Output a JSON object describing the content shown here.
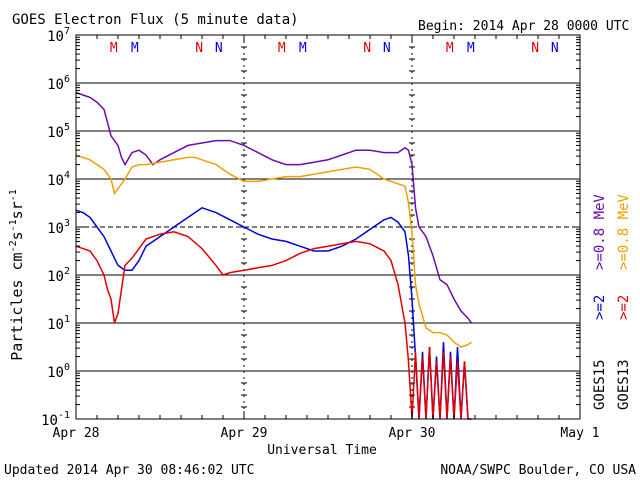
{
  "header": {
    "title": "GOES Electron Flux (5 minute data)",
    "begin": "Begin: 2014 Apr 28 0000 UTC"
  },
  "footer": {
    "updated": "Updated 2014 Apr 30 08:46:02 UTC",
    "source": "NOAA/SWPC Boulder, CO USA"
  },
  "chart_data": {
    "type": "line",
    "xlabel": "Universal Time",
    "ylabel_base": "Particles cm",
    "ylabel_exp1": "-2",
    "ylabel_mid1": "s",
    "ylabel_exp2": "-1",
    "ylabel_mid2": "sr",
    "ylabel_exp3": "-1",
    "y_scale": "log",
    "ylim_exp": [
      -1,
      7
    ],
    "xlim_hours": [
      0,
      72
    ],
    "x_ticks": [
      {
        "hour": 0,
        "label": "Apr 28"
      },
      {
        "hour": 24,
        "label": "Apr 29"
      },
      {
        "hour": 48,
        "label": "Apr 30"
      },
      {
        "hour": 72,
        "label": "May 1"
      }
    ],
    "y_tick_exponents": [
      -1,
      0,
      1,
      2,
      3,
      4,
      5,
      6,
      7
    ],
    "y_tick_base": "10",
    "threshold_exp": 3,
    "local_time_markers": [
      {
        "hour": 5.4,
        "label": "M",
        "color": "#e00000"
      },
      {
        "hour": 8.4,
        "label": "M",
        "color": "#0000dd"
      },
      {
        "hour": 17.6,
        "label": "N",
        "color": "#e00000"
      },
      {
        "hour": 20.4,
        "label": "N",
        "color": "#0000dd"
      },
      {
        "hour": 29.4,
        "label": "M",
        "color": "#e00000"
      },
      {
        "hour": 32.4,
        "label": "M",
        "color": "#0000dd"
      },
      {
        "hour": 41.6,
        "label": "N",
        "color": "#e00000"
      },
      {
        "hour": 44.4,
        "label": "N",
        "color": "#0000dd"
      },
      {
        "hour": 53.4,
        "label": "M",
        "color": "#e00000"
      },
      {
        "hour": 56.4,
        "label": "M",
        "color": "#0000dd"
      },
      {
        "hour": 65.6,
        "label": "N",
        "color": "#e00000"
      },
      {
        "hour": 68.4,
        "label": "N",
        "color": "#0000dd"
      }
    ],
    "legend": {
      "goes15": {
        "label": "GOES15",
        "lines": [
          {
            "text": ">=2",
            "color": "#0000dd"
          },
          {
            "text": ">=0.8 MeV",
            "color": "#6a0dad"
          }
        ]
      },
      "goes13": {
        "label": "GOES13",
        "lines": [
          {
            "text": ">=2",
            "color": "#e00000"
          },
          {
            "text": ">=0.8 MeV",
            "color": "#f0a000"
          }
        ]
      },
      "g15_hi_text": ">=2",
      "g15_lo_text": ">=0.8 MeV",
      "g13_hi_text": ">=2",
      "g13_lo_text": ">=0.8 MeV"
    },
    "series": [
      {
        "satellite": "GOES15",
        "energy": ">=0.8 MeV",
        "color": "#6a0dad",
        "x": [
          0,
          1,
          2,
          3,
          4,
          5,
          6,
          6.5,
          7,
          8,
          9,
          10,
          11,
          12,
          14,
          16,
          18,
          20,
          22,
          24,
          26,
          28,
          30,
          32,
          34,
          36,
          38,
          40,
          42,
          44,
          45,
          46,
          47,
          47.5,
          48,
          48.5,
          49,
          50,
          51,
          52,
          53,
          54,
          55,
          56,
          56.5
        ],
        "y": [
          5.8,
          5.75,
          5.7,
          5.6,
          5.45,
          4.9,
          4.7,
          4.45,
          4.3,
          4.55,
          4.6,
          4.5,
          4.3,
          4.4,
          4.55,
          4.7,
          4.75,
          4.8,
          4.8,
          4.7,
          4.55,
          4.4,
          4.3,
          4.3,
          4.35,
          4.4,
          4.5,
          4.6,
          4.6,
          4.55,
          4.55,
          4.55,
          4.65,
          4.6,
          4.3,
          3.4,
          3,
          2.8,
          2.4,
          1.9,
          1.8,
          1.5,
          1.25,
          1.1,
          1.0
        ]
      },
      {
        "satellite": "GOES13",
        "energy": ">=0.8 MeV",
        "color": "#f0a000",
        "x": [
          0,
          1,
          2,
          3,
          4,
          5,
          5.5,
          6,
          6.5,
          7,
          8,
          9,
          10,
          12,
          14,
          16,
          17,
          18,
          20,
          22,
          24,
          26,
          28,
          30,
          32,
          34,
          36,
          38,
          40,
          42,
          44,
          46,
          47,
          47.5,
          48,
          48.5,
          49,
          50,
          51,
          52,
          53,
          54,
          55,
          56,
          56.5
        ],
        "y": [
          4.5,
          4.45,
          4.4,
          4.3,
          4.2,
          4.0,
          3.7,
          3.8,
          3.9,
          4.0,
          4.25,
          4.3,
          4.3,
          4.35,
          4.4,
          4.45,
          4.45,
          4.4,
          4.3,
          4.1,
          3.95,
          3.95,
          4.0,
          4.05,
          4.05,
          4.1,
          4.15,
          4.2,
          4.25,
          4.2,
          4.0,
          3.9,
          3.85,
          3.5,
          2.9,
          1.8,
          1.4,
          0.9,
          0.8,
          0.8,
          0.75,
          0.6,
          0.5,
          0.55,
          0.6
        ]
      },
      {
        "satellite": "GOES15",
        "energy": ">=2 MeV",
        "color": "#0000dd",
        "x": [
          0,
          1,
          2,
          3,
          4,
          5,
          6,
          7,
          8,
          9,
          10,
          11,
          12,
          14,
          16,
          18,
          20,
          22,
          24,
          26,
          28,
          30,
          32,
          34,
          36,
          38,
          40,
          42,
          44,
          45,
          46,
          47,
          47.5,
          48,
          48.5,
          49,
          49.5,
          50,
          50.5,
          51,
          51.5,
          52,
          52.5,
          53,
          53.5,
          54,
          54.5,
          55,
          55.5,
          56,
          56.5
        ],
        "y": [
          3.35,
          3.3,
          3.2,
          3.0,
          2.8,
          2.5,
          2.2,
          2.1,
          2.1,
          2.3,
          2.6,
          2.7,
          2.8,
          3.0,
          3.2,
          3.4,
          3.3,
          3.15,
          3.0,
          2.85,
          2.75,
          2.7,
          2.6,
          2.5,
          2.5,
          2.6,
          2.75,
          2.95,
          3.15,
          3.2,
          3.1,
          2.9,
          2.4,
          1.5,
          0.3,
          -1,
          0.4,
          -1,
          0.5,
          -1,
          0.3,
          -1,
          0.6,
          -1,
          0.4,
          -1,
          0.5,
          -1,
          0.2,
          -1,
          -1
        ]
      },
      {
        "satellite": "GOES13",
        "energy": ">=2 MeV",
        "color": "#e00000",
        "x": [
          0,
          1,
          2,
          3,
          4,
          4.5,
          5,
          5.5,
          6,
          6.5,
          7,
          8,
          9,
          10,
          12,
          14,
          16,
          18,
          20,
          21,
          22,
          24,
          26,
          28,
          30,
          32,
          34,
          36,
          38,
          40,
          42,
          44,
          45,
          46,
          47,
          47.5,
          48,
          48.5,
          49,
          49.5,
          50,
          50.5,
          51,
          51.5,
          52,
          52.5,
          53,
          53.5,
          54,
          54.5,
          55,
          55.5,
          56
        ],
        "y": [
          2.6,
          2.55,
          2.5,
          2.3,
          2.0,
          1.7,
          1.5,
          1.0,
          1.2,
          1.7,
          2.2,
          2.35,
          2.55,
          2.75,
          2.85,
          2.9,
          2.8,
          2.55,
          2.2,
          2.0,
          2.05,
          2.1,
          2.15,
          2.2,
          2.3,
          2.45,
          2.55,
          2.6,
          2.65,
          2.7,
          2.65,
          2.5,
          2.3,
          1.8,
          1.0,
          0.2,
          -1,
          0.4,
          -1,
          0.3,
          -1,
          0.5,
          -1,
          0.2,
          -1,
          0.4,
          -1,
          0.3,
          -1,
          0.2,
          -1,
          0.2,
          -1
        ]
      }
    ]
  }
}
